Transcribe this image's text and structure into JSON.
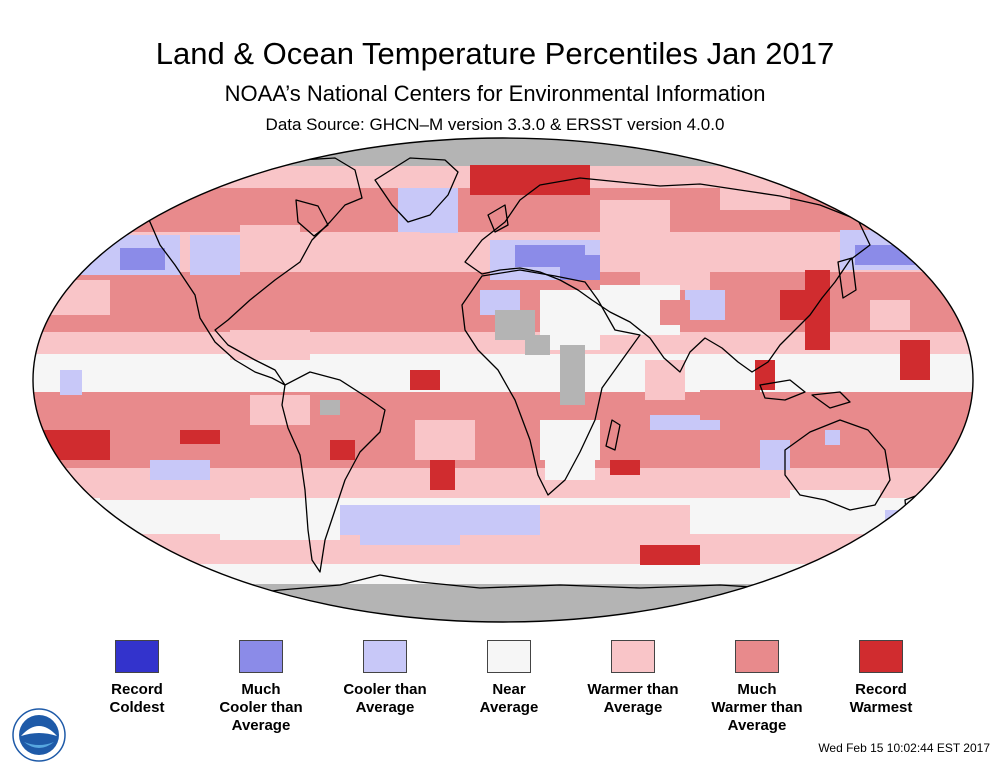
{
  "title": "Land & Ocean Temperature Percentiles Jan 2017",
  "subtitle": "NOAA’s National Centers for Environmental Information",
  "source": "Data Source: GHCN–M version 3.3.0 & ERSST version 4.0.0",
  "timestamp": "Wed Feb 15 10:02:44 EST 2017",
  "logo_text": "NOAA",
  "colors": {
    "record_coldest": "#3333cc",
    "much_cooler": "#8b8be8",
    "cooler": "#c8c8f8",
    "near": "#f6f6f6",
    "warmer": "#f9c5c8",
    "much_warmer": "#e88a8c",
    "record_warmest": "#d02c2f",
    "no_data": "#b4b4b4",
    "ocean_bg": "#e88a8c"
  },
  "legend": [
    {
      "key": "record_coldest",
      "line1": "Record",
      "line2": "Coldest",
      "line3": ""
    },
    {
      "key": "much_cooler",
      "line1": "Much",
      "line2": "Cooler than",
      "line3": "Average"
    },
    {
      "key": "cooler",
      "line1": "Cooler than",
      "line2": "Average",
      "line3": ""
    },
    {
      "key": "near",
      "line1": "Near",
      "line2": "Average",
      "line3": ""
    },
    {
      "key": "warmer",
      "line1": "Warmer than",
      "line2": "Average",
      "line3": ""
    },
    {
      "key": "much_warmer",
      "line1": "Much",
      "line2": "Warmer than",
      "line3": "Average"
    },
    {
      "key": "record_warmest",
      "line1": "Record",
      "line2": "Warmest",
      "line3": ""
    }
  ]
}
